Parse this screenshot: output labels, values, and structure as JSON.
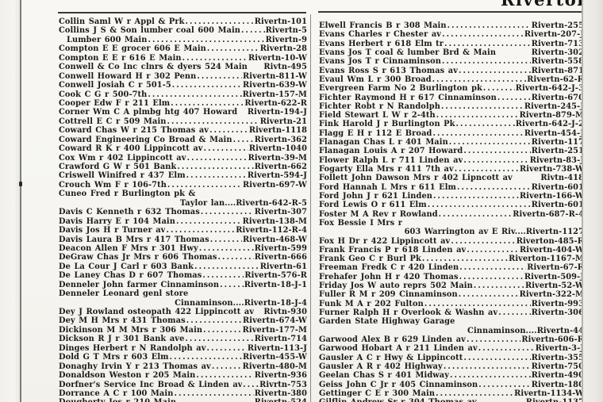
{
  "header": {
    "title": "Riverton"
  },
  "colors": {
    "ink": "#1d1a16",
    "paper": "#f7f6f2",
    "rule": "#3c3934"
  },
  "directory": {
    "left_column": {
      "entries": [
        {
          "name": "Collin Saml W r Appl & Prk",
          "phone": "Rivertn-101",
          "layout": "dots"
        },
        {
          "name": "Collins J S & Son lumber coal 600 Main",
          "phone": "Rivertn-5",
          "layout": "dots"
        },
        {
          "name": "Lumber 600 Main",
          "phone": "Rivertn-9",
          "layout": "dots",
          "indent": true
        },
        {
          "name": "Compton E E grocer 606 E Main",
          "phone": "Rivertn-28",
          "layout": "dots"
        },
        {
          "name": "Compton E E r 616 E Main",
          "phone": "Rivertn-10-W",
          "layout": "dots"
        },
        {
          "name": "Conwell & Co Inc clnrs & dyers 524 Main",
          "phone": "Rivtn-495",
          "layout": "plain"
        },
        {
          "name": "Conwell Howard H r 302 Penn",
          "phone": "Rivertn-811-W",
          "layout": "dots"
        },
        {
          "name": "Conwell Josiah C r 501-5",
          "phone": "Rivertn-639-W",
          "layout": "dots"
        },
        {
          "name": "Cook C G r 500-7th",
          "phone": "Rivertn-157-M",
          "layout": "dots"
        },
        {
          "name": "Cooper Edw F r 211 Elm",
          "phone": "Rivertn-622-R",
          "layout": "dots"
        },
        {
          "name": "Corner Wm C A plmbg htg 407 Howard",
          "phone": "Rivertn-194-J",
          "layout": "plain"
        },
        {
          "name": "Cottrell E C r 509 Main",
          "phone": "Rivertn-21",
          "layout": "dots"
        },
        {
          "name": "Coward Chas W r 215 Thomas av",
          "phone": "Rivertn-1118",
          "layout": "dots"
        },
        {
          "name": "Coward Engineering Co Broad & Main",
          "phone": "Rivertn-362",
          "layout": "dots"
        },
        {
          "name": "Coward R K r 400 Lippincott av",
          "phone": "Rivertn-1040",
          "layout": "dots"
        },
        {
          "name": "Cox Wm r 402 Lippincott av",
          "phone": "Rivertn-39-M",
          "layout": "dots"
        },
        {
          "name": "Crawford G W r 501 Bank",
          "phone": "Rivertn-662",
          "layout": "dots"
        },
        {
          "name": "Criswell Winifred r 437 Elm",
          "phone": "Rivertn-594-J",
          "layout": "dots"
        },
        {
          "name": "Crouch Wm F r 106-7th",
          "phone": "Rivertn-697-W",
          "layout": "dots"
        },
        {
          "name": "Cuneo Fred r Burlington pk &",
          "phone": "",
          "layout": "head"
        },
        {
          "name": "Taylor lan....",
          "phone": "Rivertn-642-R-5",
          "layout": "right"
        },
        {
          "name": "Davis C Kenneth r 632 Thomas",
          "phone": "Rivertn-307",
          "layout": "dots"
        },
        {
          "name": "Davis Harry E r 104 Main",
          "phone": "Rivertn-138-M",
          "layout": "dots"
        },
        {
          "name": "Davis Jos H r Turner av",
          "phone": "Rivertn-112-R-4",
          "layout": "dots"
        },
        {
          "name": "Davis Laura B Mrs r 417 Thomas",
          "phone": "Rivertn-468-W",
          "layout": "dots"
        },
        {
          "name": "Deacon Allen F Mrs r 301 Hwy",
          "phone": "Rivertn-599",
          "layout": "dots"
        },
        {
          "name": "DeGraw Chas Jr Mrs r 606 Thomas",
          "phone": "Rivertn-666",
          "layout": "dots"
        },
        {
          "name": "De La Cour J Carl r 603 Bank",
          "phone": "Rivertn-61",
          "layout": "dots"
        },
        {
          "name": "De Laney Chas D r 607 Thomas",
          "phone": "Rivertn-576-R",
          "layout": "dots"
        },
        {
          "name": "Denneler John farmer Cinnaminson",
          "phone": "Rivertn-18-J-1",
          "layout": "dots"
        },
        {
          "name": "Denneler Leonard genl store",
          "phone": "",
          "layout": "head"
        },
        {
          "name": "Cinnaminson....",
          "phone": "Rivertn-18-J-4",
          "layout": "right"
        },
        {
          "name": "Dey J Rowland osteopath 422 Lippincott av",
          "phone": "Rivtn-930",
          "layout": "plain"
        },
        {
          "name": "Dey M H Mrs r 431 Thomas",
          "phone": "Rivertn-674-W",
          "layout": "dots"
        },
        {
          "name": "Dickinson M M Mrs r 306 Main",
          "phone": "Rivertn-177-M",
          "layout": "dots"
        },
        {
          "name": "Dickson R J r 301 Bank ave",
          "phone": "Rivertn-714",
          "layout": "dots"
        },
        {
          "name": "Dinges Herbert r N Randolph av",
          "phone": "Rivertn-113-J",
          "layout": "dots"
        },
        {
          "name": "Dold G T Mrs r 603 Elm",
          "phone": "Rivertn-455-W",
          "layout": "dots"
        },
        {
          "name": "Donaghy Irvin Y r 213 Thomas av",
          "phone": "Rivertn-480-M",
          "layout": "dots"
        },
        {
          "name": "Donaldson Weston r 205 Main",
          "phone": "Rivertn-936",
          "layout": "dots"
        },
        {
          "name": "Dorfner's Service Inc Broad & Linden av",
          "phone": "Rivrtn-753",
          "layout": "dots"
        },
        {
          "name": "Dorrance A C r 100 Main",
          "phone": "Rivertn-380",
          "layout": "dots"
        },
        {
          "name": "Dougherty Jos r 210 Main",
          "phone": "Rivertn-524",
          "layout": "dots"
        }
      ]
    },
    "right_column": {
      "entries": [
        {
          "name": "Elwell Francis B r 308 Main",
          "phone": "Rivertn-255",
          "layout": "dots"
        },
        {
          "name": "Evans Charles r Chester av",
          "phone": "Rivertn-207-J",
          "layout": "dots"
        },
        {
          "name": "Evans Herbert r 618 Elm tr",
          "phone": "Rivertn-713",
          "layout": "dots"
        },
        {
          "name": "Evans Jos T coal & lumber Brd & Main",
          "phone": "Rivertn-302",
          "layout": "plain"
        },
        {
          "name": "Evans Jos T r Cinnaminson",
          "phone": "Rivertn-558",
          "layout": "dots"
        },
        {
          "name": "Evans Ross S r 613 Thomas av",
          "phone": "Rivertn-871",
          "layout": "dots"
        },
        {
          "name": "Evaul Wm L r 300 Broad",
          "phone": "Rivertn-62-R",
          "layout": "dots"
        },
        {
          "name": "Evergreen Farm No 2 Burlington pk",
          "phone": "Rivertn-642-J-3",
          "layout": "dots"
        },
        {
          "name": "Fichter Raymond H r 617 Cinnaminson",
          "phone": "Rivertn-670",
          "layout": "dots"
        },
        {
          "name": "Fichter Robt r N Randolph",
          "phone": "Rivertn-245-J",
          "layout": "dots"
        },
        {
          "name": "Field Stewart L W r 2-4th",
          "phone": "Rivertn-879-M",
          "layout": "dots"
        },
        {
          "name": "Fink Harold J r Burlington Pk",
          "phone": "Rivertn-642-J-2",
          "layout": "dots"
        },
        {
          "name": "Flagg E H r 112 E Broad",
          "phone": "Rivertn-454-J",
          "layout": "dots"
        },
        {
          "name": "Flanagan Chas L r 401 Main",
          "phone": "Rivertn-117",
          "layout": "dots"
        },
        {
          "name": "Flanagan Louis A r 207 Howard",
          "phone": "Rivertn-251",
          "layout": "dots"
        },
        {
          "name": "Flower Ralph L r 711 Linden av",
          "phone": "Rivertn-83-J",
          "layout": "dots"
        },
        {
          "name": "Fogarty Ella Mrs r 411 7th av",
          "phone": "Rivertn-738-W",
          "layout": "dots"
        },
        {
          "name": "Follett John Dawson Mrs r 402 Lipncott av",
          "phone": "Rivtn-418",
          "layout": "plain"
        },
        {
          "name": "Ford Hannah L Mrs r 611 Elm",
          "phone": "Rivertn-601",
          "layout": "dots"
        },
        {
          "name": "Ford John J r 621 Linden",
          "phone": "Rivertn-166-W",
          "layout": "dots"
        },
        {
          "name": "Ford Lewis O r 611 Elm",
          "phone": "Rivertn-601",
          "layout": "dots"
        },
        {
          "name": "Foster M A Rev r Rowland",
          "phone": "Rivertn-687-R-4",
          "layout": "dots"
        },
        {
          "name": "Fox Bessie I Mrs r",
          "phone": "",
          "layout": "head"
        },
        {
          "name": "603 Warrington av E Riv....",
          "phone": "Rivertn-1127",
          "layout": "right"
        },
        {
          "name": "Fox H Dr r 422 Lippincott av",
          "phone": "Riverton-485-R",
          "layout": "dots"
        },
        {
          "name": "Frank Francis P r 618 Linden av",
          "phone": "Rivertn-404-W",
          "layout": "dots"
        },
        {
          "name": "Frank Geo C r Burl Pk",
          "phone": "Riverton-1167-M",
          "layout": "dots"
        },
        {
          "name": "Freeman Fredk C r 420 Linden",
          "phone": "Rivertn-67-R",
          "layout": "dots"
        },
        {
          "name": "Frehafer John H r 420 Thomas",
          "phone": "Rivertn-509-J",
          "layout": "dots"
        },
        {
          "name": "Friday Jos W auto reprs 502 Main",
          "phone": "Rivertn-52-W",
          "layout": "dots"
        },
        {
          "name": "Fuller R M r 209 Cinnaminson",
          "phone": "Rivertn-322-M",
          "layout": "dots"
        },
        {
          "name": "Funk M A r 202 Fulton",
          "phone": "Rivertn-993",
          "layout": "dots"
        },
        {
          "name": "Furner Ralph H r Overlook & Washn av",
          "phone": "Rivertn-306",
          "layout": "dots"
        },
        {
          "name": "Garden State Highway Garage",
          "phone": "",
          "layout": "head"
        },
        {
          "name": "Cinnaminson....",
          "phone": "Rivertn-44",
          "layout": "right"
        },
        {
          "name": "Garwood Alex B r 629 Linden av",
          "phone": "Rivertn-606-R",
          "layout": "dots"
        },
        {
          "name": "Garwood Hobart A r 211 Linden av",
          "phone": "Rivertn-3-J",
          "layout": "dots"
        },
        {
          "name": "Gausler A C r Hwy & Lippincott",
          "phone": "Rivertn-355",
          "layout": "dots"
        },
        {
          "name": "Gausler A R r 402 Highway",
          "phone": "Rivertn-750",
          "layout": "dots"
        },
        {
          "name": "Geelan Chas S r 401 Midway",
          "phone": "Rivertn-490",
          "layout": "dots"
        },
        {
          "name": "Geiss John C Jr r 405 Cinnaminson",
          "phone": "Rivertn-180",
          "layout": "dots"
        },
        {
          "name": "Gettinger C E r 300 Main",
          "phone": "Rivertn-1134-W",
          "layout": "dots"
        },
        {
          "name": "Gilflin Andrew Sr r 304 Thomas av",
          "phone": "Rivertn-1137",
          "layout": "dots"
        }
      ]
    }
  }
}
